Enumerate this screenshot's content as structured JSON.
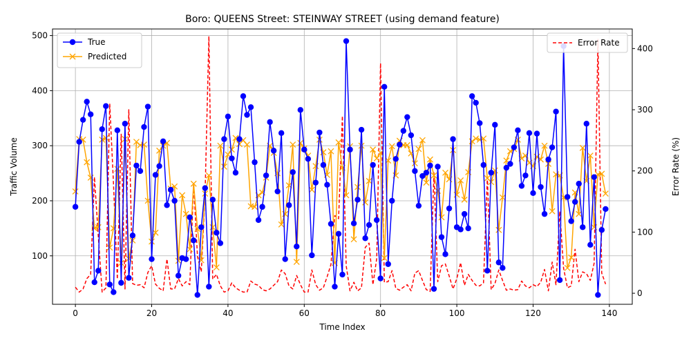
{
  "chart_data": {
    "type": "line",
    "title": "Boro: QUEENS Street: STEINWAY STREET (using demand feature)",
    "xlabel": "Time Index",
    "ylabel": "Traffic Volume",
    "y2label": "Error Rate (%)",
    "xlim": [
      -6,
      146
    ],
    "ylim": [
      12,
      512
    ],
    "y2lim": [
      -18,
      432
    ],
    "xticks": [
      0,
      20,
      40,
      60,
      80,
      100,
      120,
      140
    ],
    "yticks": [
      100,
      200,
      300,
      400,
      500
    ],
    "y2ticks": [
      0,
      100,
      200,
      300,
      400
    ],
    "grid": true,
    "legend_left_position": "upper-left",
    "legend_right_position": "upper-right",
    "colors": {
      "true": "#0000ff",
      "predicted": "#ffa500",
      "error": "#ff0000",
      "grid": "#b0b0b0"
    },
    "series": [
      {
        "name": "True",
        "axis": "left",
        "style": "solid-circle",
        "values": [
          189,
          307,
          347,
          380,
          357,
          52,
          73,
          330,
          372,
          48,
          34,
          328,
          51,
          340,
          60,
          137,
          264,
          254,
          334,
          371,
          94,
          247,
          263,
          308,
          192,
          220,
          200,
          64,
          96,
          94,
          170,
          128,
          29,
          152,
          223,
          44,
          202,
          142,
          123,
          312,
          353,
          277,
          251,
          312,
          390,
          356,
          370,
          270,
          165,
          189,
          246,
          343,
          291,
          217,
          323,
          94,
          192,
          252,
          117,
          365,
          293,
          276,
          101,
          233,
          324,
          265,
          229,
          158,
          44,
          140,
          66,
          490,
          293,
          159,
          202,
          329,
          132,
          156,
          265,
          165,
          59,
          407,
          85,
          200,
          276,
          302,
          327,
          352,
          319,
          254,
          191,
          245,
          251,
          264,
          40,
          262,
          134,
          103,
          186,
          312,
          152,
          148,
          176,
          150,
          390,
          378,
          341,
          265,
          73,
          251,
          338,
          88,
          78,
          260,
          267,
          297,
          328,
          227,
          246,
          323,
          214,
          322,
          225,
          176,
          275,
          297,
          362,
          56,
          481,
          207,
          163,
          198,
          231,
          152,
          340,
          120,
          243,
          29,
          147,
          185
        ]
      },
      {
        "name": "Predicted",
        "axis": "left",
        "style": "x-marker",
        "values": [
          217,
          312,
          311,
          270,
          242,
          150,
          152,
          311,
          314,
          115,
          150,
          258,
          87,
          312,
          95,
          128,
          307,
          301,
          302,
          200,
          126,
          142,
          291,
          300,
          305,
          222,
          226,
          91,
          210,
          176,
          112,
          231,
          149,
          92,
          213,
          246,
          152,
          79,
          300,
          262,
          284,
          293,
          314,
          303,
          310,
          302,
          190,
          189,
          210,
          215,
          242,
          300,
          287,
          250,
          157,
          176,
          228,
          302,
          89,
          305,
          295,
          282,
          220,
          263,
          311,
          288,
          247,
          290,
          87,
          306,
          260,
          210,
          299,
          130,
          225,
          300,
          197,
          236,
          293,
          277,
          287,
          96,
          273,
          299,
          246,
          309,
          301,
          301,
          286,
          268,
          294,
          310,
          233,
          275,
          246,
          218,
          170,
          251,
          239,
          292,
          211,
          237,
          202,
          252,
          308,
          313,
          311,
          313,
          241,
          234,
          255,
          147,
          206,
          273,
          290,
          294,
          311,
          277,
          282,
          269,
          263,
          280,
          275,
          300,
          267,
          181,
          248,
          246,
          206,
          78,
          97,
          215,
          176,
          296,
          236,
          282,
          152,
          248,
          249,
          213
        ]
      },
      {
        "name": "Error Rate",
        "axis": "right",
        "style": "dashed",
        "values": [
          10,
          2,
          7,
          24,
          31,
          190,
          94,
          2,
          9,
          310,
          178,
          23,
          260,
          7,
          300,
          16,
          13,
          14,
          9,
          34,
          45,
          15,
          8,
          4,
          56,
          7,
          7,
          24,
          12,
          19,
          14,
          180,
          60,
          35,
          163,
          420,
          23,
          31,
          12,
          2,
          4,
          17,
          9,
          5,
          2,
          2,
          20,
          15,
          13,
          6,
          4,
          7,
          13,
          19,
          38,
          32,
          12,
          7,
          29,
          14,
          2,
          2,
          38,
          14,
          5,
          9,
          27,
          47,
          127,
          122,
          290,
          45,
          4,
          18,
          4,
          9,
          75,
          82,
          14,
          57,
          376,
          18,
          19,
          37,
          8,
          5,
          10,
          14,
          4,
          33,
          37,
          21,
          6,
          3,
          197,
          19,
          45,
          48,
          28,
          7,
          24,
          50,
          13,
          31,
          21,
          13,
          12,
          17,
          190,
          6,
          16,
          38,
          21,
          5,
          7,
          5,
          6,
          20,
          12,
          9,
          14,
          11,
          18,
          39,
          4,
          51,
          14,
          134,
          41,
          9,
          12,
          72,
          19,
          35,
          32,
          21,
          49,
          415,
          33,
          15
        ]
      }
    ]
  }
}
